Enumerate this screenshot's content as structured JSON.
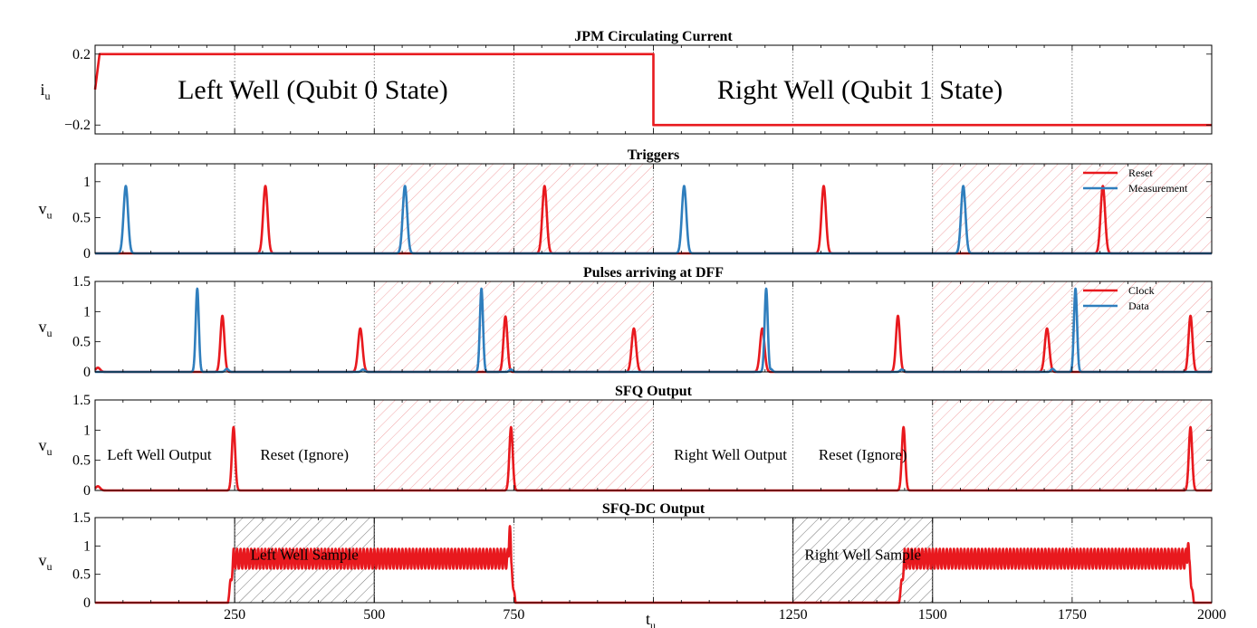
{
  "colors": {
    "red": "#e8191e",
    "blue": "#2f7ebd",
    "redHatch": "#f19a9c",
    "grayHatch": "#666666"
  },
  "chart_data": {
    "type": "line",
    "xlabel": "t",
    "xlabel_sub": "u",
    "xlim": [
      0,
      2000
    ],
    "xticks": [
      250,
      500,
      750,
      1250,
      1500,
      1750,
      2000
    ],
    "xtick_labels": [
      "250",
      "500",
      "750",
      "1250",
      "1500",
      "1750",
      "2000"
    ],
    "grid_x": [
      250,
      500,
      750,
      1000,
      1250,
      1500,
      1750
    ],
    "panels": [
      {
        "id": "jpm",
        "title": "JPM Circulating Current",
        "ylabel": "i",
        "ylabel_sub": "u",
        "ylim": [
          -0.25,
          0.25
        ],
        "yticks": [
          0.2,
          -0.2
        ],
        "ytick_labels": [
          "0.2",
          "−0.2"
        ],
        "annotations": [
          {
            "text": "Left Well (Qubit 0 State)",
            "x": 390,
            "y": 0.0,
            "size": "large"
          },
          {
            "text": "Right Well (Qubit 1 State)",
            "x": 1370,
            "y": 0.0,
            "size": "large"
          }
        ],
        "series": [
          {
            "color": "red",
            "points": [
              [
                0,
                0
              ],
              [
                8,
                0.2
              ],
              [
                1000,
                0.2
              ],
              [
                1000,
                -0.2
              ],
              [
                2000,
                -0.2
              ]
            ]
          }
        ]
      },
      {
        "id": "triggers",
        "title": "Triggers",
        "ylabel": "v",
        "ylabel_sub": "u",
        "ylim": [
          0,
          1.25
        ],
        "yticks": [
          0,
          0.5,
          1
        ],
        "ytick_labels": [
          "0",
          "0.5",
          "1"
        ],
        "red_hatch": [
          [
            500,
            1000
          ],
          [
            1500,
            2000
          ]
        ],
        "legend": [
          "Reset",
          "Measurement"
        ],
        "series": [
          {
            "name": "Reset",
            "color": "red",
            "pulses": [
              [
                305,
                0.94,
                4
              ],
              [
                805,
                0.94,
                4
              ],
              [
                1305,
                0.94,
                4
              ],
              [
                1805,
                0.94,
                4
              ]
            ]
          },
          {
            "name": "Measurement",
            "color": "blue",
            "pulses": [
              [
                55,
                0.94,
                4
              ],
              [
                555,
                0.94,
                4
              ],
              [
                1055,
                0.94,
                4
              ],
              [
                1555,
                0.94,
                4
              ]
            ]
          }
        ]
      },
      {
        "id": "dff",
        "title": "Pulses arriving at DFF",
        "ylabel": "v",
        "ylabel_sub": "u",
        "ylim": [
          0,
          1.5
        ],
        "yticks": [
          0,
          0.5,
          1,
          1.5
        ],
        "ytick_labels": [
          "0",
          "0.5",
          "1",
          "1.5"
        ],
        "red_hatch": [
          [
            500,
            1000
          ],
          [
            1500,
            2000
          ]
        ],
        "legend": [
          "Clock",
          "Data"
        ],
        "series": [
          {
            "name": "Clock",
            "color": "red",
            "pulses": [
              [
                5,
                0.07,
                4
              ],
              [
                228,
                0.93,
                3.5
              ],
              [
                475,
                0.72,
                4
              ],
              [
                735,
                0.92,
                3.5
              ],
              [
                965,
                0.72,
                4
              ],
              [
                1195,
                0.72,
                4
              ],
              [
                1438,
                0.93,
                3.5
              ],
              [
                1705,
                0.72,
                4
              ],
              [
                1962,
                0.93,
                3.5
              ]
            ]
          },
          {
            "name": "Data",
            "color": "blue",
            "pulses": [
              [
                183,
                1.38,
                2.8
              ],
              [
                692,
                1.38,
                2.8
              ],
              [
                1202,
                1.38,
                2.8
              ],
              [
                1756,
                1.38,
                2.8
              ],
              [
                236,
                0.05,
                3
              ],
              [
                480,
                0.04,
                3
              ],
              [
                745,
                0.04,
                3
              ],
              [
                1210,
                0.05,
                3
              ],
              [
                1445,
                0.04,
                3
              ],
              [
                1715,
                0.05,
                3
              ]
            ]
          }
        ]
      },
      {
        "id": "sfq",
        "title": "SFQ Output",
        "ylabel": "v",
        "ylabel_sub": "u",
        "ylim": [
          0,
          1.5
        ],
        "yticks": [
          0,
          0.5,
          1,
          1.5
        ],
        "ytick_labels": [
          "0",
          "0.5",
          "1",
          "1.5"
        ],
        "red_hatch": [
          [
            500,
            1000
          ],
          [
            1500,
            2000
          ]
        ],
        "annotations": [
          {
            "text": "Left Well Output",
            "x": 115,
            "y": 0.6,
            "size": "small"
          },
          {
            "text": "Reset (Ignore)",
            "x": 375,
            "y": 0.6,
            "size": "small"
          },
          {
            "text": "Right Well Output",
            "x": 1138,
            "y": 0.6,
            "size": "small"
          },
          {
            "text": "Reset (Ignore)",
            "x": 1375,
            "y": 0.6,
            "size": "small"
          }
        ],
        "series": [
          {
            "color": "red",
            "pulses": [
              [
                5,
                0.07,
                4
              ],
              [
                248,
                1.05,
                3
              ],
              [
                745,
                1.05,
                3
              ],
              [
                1448,
                1.05,
                3
              ],
              [
                1962,
                1.05,
                3
              ]
            ]
          }
        ]
      },
      {
        "id": "sfqdc",
        "title": "SFQ-DC Output",
        "ylabel": "v",
        "ylabel_sub": "u",
        "ylim": [
          0,
          1.5
        ],
        "yticks": [
          0,
          0.5,
          1,
          1.5
        ],
        "ytick_labels": [
          "0",
          "0.5",
          "1",
          "1.5"
        ],
        "gray_hatch": [
          [
            250,
            500
          ],
          [
            1250,
            1500
          ]
        ],
        "annotations": [
          {
            "text": "Left Well Sample",
            "x": 375,
            "y": 0.85,
            "size": "small"
          },
          {
            "text": "Right Well Sample",
            "x": 1375,
            "y": 0.85,
            "size": "small"
          }
        ],
        "series": [
          {
            "color": "red",
            "segments": [
              {
                "start": 248,
                "end": 743,
                "low": 0.6,
                "high": 0.95,
                "period": 6.3,
                "peak": 1.35
              },
              {
                "start": 1450,
                "end": 1958,
                "low": 0.6,
                "high": 0.95,
                "period": 6.3,
                "peak": 1.05
              }
            ]
          }
        ]
      }
    ]
  }
}
